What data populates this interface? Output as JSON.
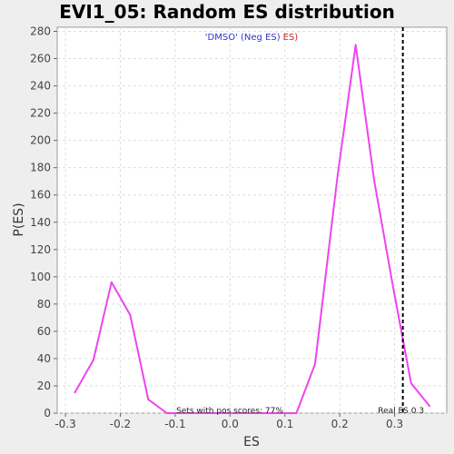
{
  "chart_data": {
    "type": "line",
    "title": "EVI1_05: Random ES distribution",
    "xlabel": "ES",
    "ylabel": "P(ES)",
    "xlim": [
      -0.315,
      0.395
    ],
    "ylim": [
      0,
      283
    ],
    "x_ticks": [
      -0.3,
      -0.2,
      -0.1,
      0.0,
      0.1,
      0.2,
      0.3
    ],
    "x_tick_labels": [
      "-0.3",
      "-0.2",
      "-0.1",
      "0.0",
      "0.1",
      "0.2",
      "0.3"
    ],
    "y_ticks": [
      0,
      20,
      40,
      60,
      80,
      100,
      120,
      140,
      160,
      180,
      200,
      220,
      240,
      260,
      280
    ],
    "y_tick_labels": [
      "0",
      "20",
      "40",
      "60",
      "80",
      "100",
      "120",
      "140",
      "160",
      "180",
      "200",
      "220",
      "240",
      "260",
      "280"
    ],
    "grid": true,
    "series": [
      {
        "color": "#ee44ee",
        "x": [
          -0.283,
          -0.249,
          -0.216,
          -0.182,
          -0.149,
          -0.115,
          -0.081,
          -0.047,
          -0.014,
          0.02,
          0.054,
          0.087,
          0.121,
          0.155,
          0.196,
          0.229,
          0.263,
          0.297,
          0.33,
          0.364
        ],
        "y": [
          15,
          39,
          96,
          72,
          10,
          0,
          0,
          0,
          0,
          0,
          0,
          0,
          0,
          36,
          174,
          270,
          170,
          93,
          22,
          5
        ]
      }
    ],
    "legend": {
      "placement": "top-center",
      "part1": "'DMSO' (Neg ES)",
      "part1_color": "#3333cc",
      "part2": "ES)",
      "part2_color": "#cc2222"
    },
    "real_es": {
      "x": 0.315,
      "label": "Real ES 0.3"
    },
    "annotation": "Sets with pos scores: 77%"
  }
}
